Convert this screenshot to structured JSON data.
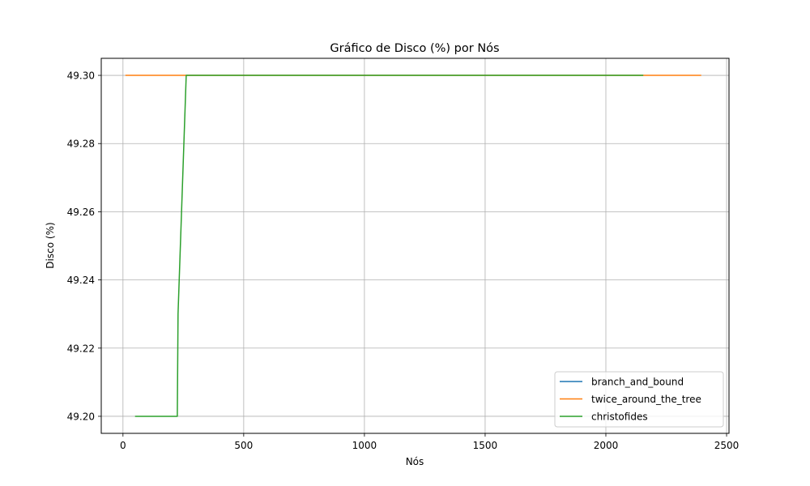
{
  "chart_data": {
    "type": "line",
    "title": "Gráfico de Disco (%) por Nós",
    "xlabel": "Nós",
    "ylabel": "Disco (%)",
    "xlim": [
      -90,
      2510
    ],
    "ylim": [
      49.195,
      49.305
    ],
    "xticks": [
      0,
      500,
      1000,
      1500,
      2000,
      2500
    ],
    "xtick_labels": [
      "0",
      "500",
      "1000",
      "1500",
      "2000",
      "2500"
    ],
    "yticks": [
      49.2,
      49.22,
      49.24,
      49.26,
      49.28,
      49.3
    ],
    "ytick_labels": [
      "49.20",
      "49.22",
      "49.24",
      "49.26",
      "49.28",
      "49.30"
    ],
    "grid": true,
    "legend_position": "lower-right",
    "series": [
      {
        "name": "branch_and_bound",
        "color": "#1f77b4",
        "x": [],
        "y": []
      },
      {
        "name": "twice_around_the_tree",
        "color": "#ff7f0e",
        "x": [
          10,
          2395
        ],
        "y": [
          49.3,
          49.3
        ]
      },
      {
        "name": "christofides",
        "color": "#2ca02c",
        "x": [
          50,
          225,
          226,
          228,
          262,
          2155
        ],
        "y": [
          49.2,
          49.2,
          49.21,
          49.23,
          49.3,
          49.3
        ]
      }
    ]
  }
}
